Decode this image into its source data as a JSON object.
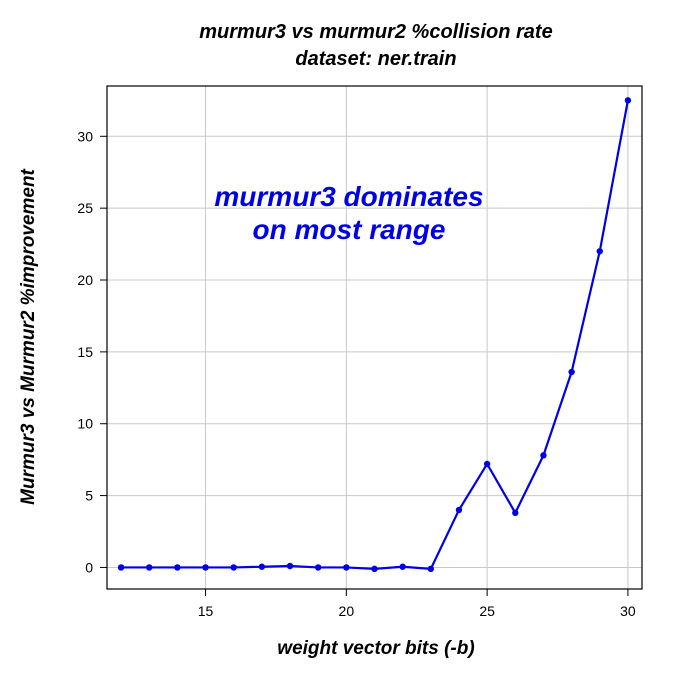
{
  "chart_data": {
    "type": "line",
    "title": "murmur3 vs murmur2 %collision rate",
    "subtitle": "dataset: ner.train",
    "xlabel": "weight vector bits (-b)",
    "ylabel": "Murmur3 vs Murmur2 %improvement",
    "xlim": [
      11.5,
      30.5
    ],
    "ylim": [
      -1.5,
      33.5
    ],
    "xticks": [
      15,
      20,
      25,
      30
    ],
    "yticks": [
      0,
      5,
      10,
      15,
      20,
      25,
      30
    ],
    "grid": true,
    "series": [
      {
        "x": [
          12,
          13,
          14,
          15,
          16,
          17,
          18,
          19,
          20,
          21,
          22,
          23,
          24,
          25,
          26,
          27,
          28,
          29,
          30
        ],
        "y": [
          0.0,
          0.0,
          0.0,
          0.0,
          0.0,
          0.05,
          0.1,
          0.0,
          0.0,
          -0.1,
          0.05,
          -0.1,
          4.0,
          7.2,
          3.8,
          7.8,
          13.6,
          22.0,
          32.5
        ]
      }
    ],
    "annotation": {
      "lines": [
        "murmur3 dominates",
        "on most range"
      ]
    },
    "colors": {
      "series": "#0000e6",
      "annotation": "#0000e6",
      "grid": "#c8c8c8",
      "axis": "#000000"
    }
  }
}
